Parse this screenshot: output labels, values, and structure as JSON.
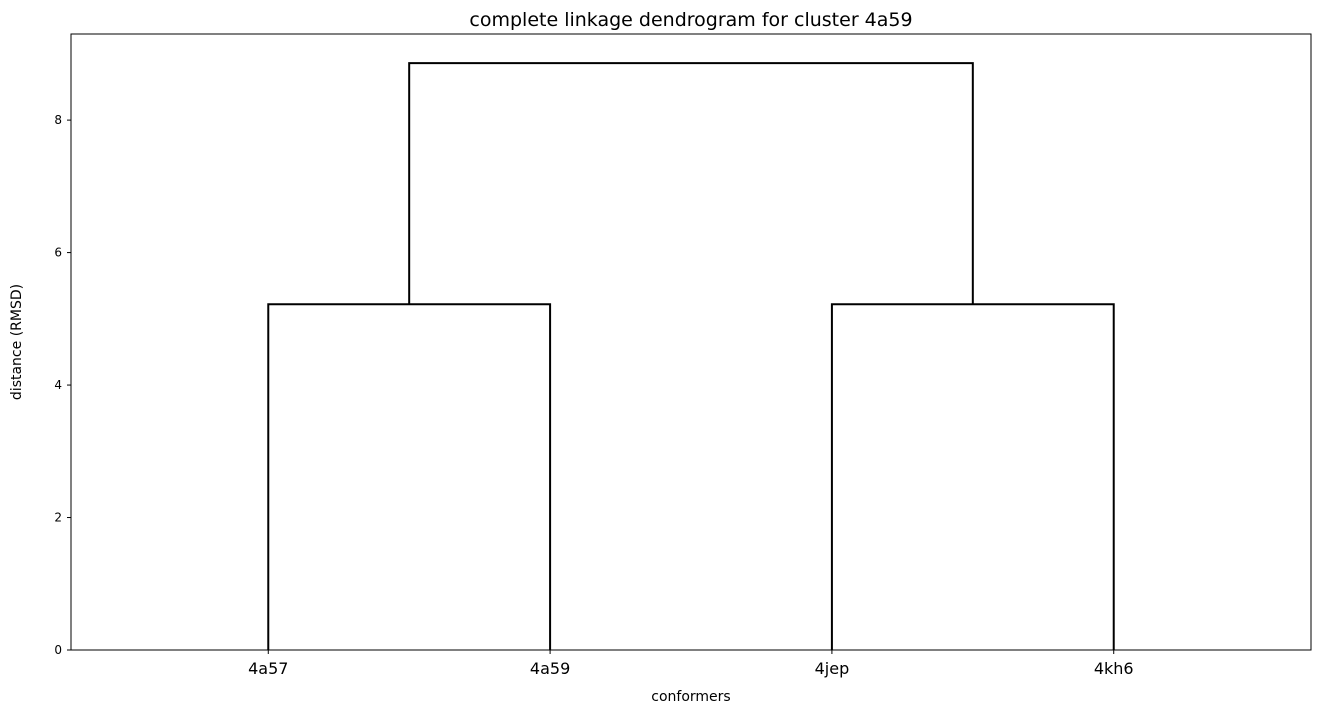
{
  "chart_data": {
    "type": "dendrogram",
    "title": "complete linkage dendrogram for cluster 4a59",
    "xlabel": "conformers",
    "ylabel": "distance (RMSD)",
    "leaves": [
      "4a57",
      "4a59",
      "4jep",
      "4kh6"
    ],
    "merges": [
      {
        "left": "4a57",
        "right": "4a59",
        "height": 5.22
      },
      {
        "left": "4jep",
        "right": "4kh6",
        "height": 5.22
      },
      {
        "left": "4a57+4a59",
        "right": "4jep+4kh6",
        "height": 8.86
      }
    ],
    "ylim": [
      0,
      9.3
    ],
    "yticks": [
      0,
      2,
      4,
      6,
      8
    ],
    "line_color": "#000000",
    "grid": false
  }
}
